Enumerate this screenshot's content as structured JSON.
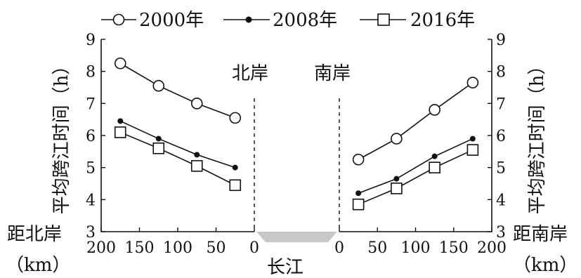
{
  "chart_data": {
    "type": "line",
    "legend": {
      "placement": "top",
      "entries": [
        {
          "label": "2000年",
          "marker": "open-circle"
        },
        {
          "label": "2008年",
          "marker": "filled-dot"
        },
        {
          "label": "2016年",
          "marker": "open-square"
        }
      ]
    },
    "y_axis": {
      "label_left": "平均跨江时间（h）",
      "label_right": "平均跨江时间（h）",
      "ylim": [
        3,
        9
      ],
      "ticks": [
        "3",
        "4",
        "5",
        "6",
        "7",
        "8",
        "9"
      ]
    },
    "x_axis_left": {
      "label_line1": "距北岸",
      "label_line2": "（km）",
      "xlim": [
        200,
        0
      ],
      "ticks": [
        "200",
        "150",
        "100",
        "50",
        "0"
      ]
    },
    "x_axis_right": {
      "label_line1": "距南岸",
      "label_line2": "（km）",
      "xlim": [
        0,
        200
      ],
      "ticks": [
        "0",
        "50",
        "100",
        "150",
        "200"
      ]
    },
    "annotations": {
      "north_bank": "北岸",
      "south_bank": "南岸",
      "river": "长江"
    },
    "series": [
      {
        "name": "2000年",
        "north_bank": {
          "x": [
            175,
            125,
            75,
            25
          ],
          "y": [
            8.25,
            7.55,
            7.0,
            6.55
          ]
        },
        "south_bank": {
          "x": [
            25,
            75,
            125,
            175
          ],
          "y": [
            5.25,
            5.9,
            6.8,
            7.65
          ]
        }
      },
      {
        "name": "2008年",
        "north_bank": {
          "x": [
            175,
            125,
            75,
            25
          ],
          "y": [
            6.45,
            5.9,
            5.4,
            5.0
          ]
        },
        "south_bank": {
          "x": [
            25,
            75,
            125,
            175
          ],
          "y": [
            4.2,
            4.65,
            5.35,
            5.9
          ]
        }
      },
      {
        "name": "2016年",
        "north_bank": {
          "x": [
            175,
            125,
            75,
            25
          ],
          "y": [
            6.1,
            5.6,
            5.05,
            4.45
          ]
        },
        "south_bank": {
          "x": [
            25,
            75,
            125,
            175
          ],
          "y": [
            3.85,
            4.35,
            5.0,
            5.55
          ]
        }
      }
    ],
    "colors": {
      "ink": "#111111",
      "river": "#c8c8c8",
      "background": "#ffffff"
    }
  }
}
